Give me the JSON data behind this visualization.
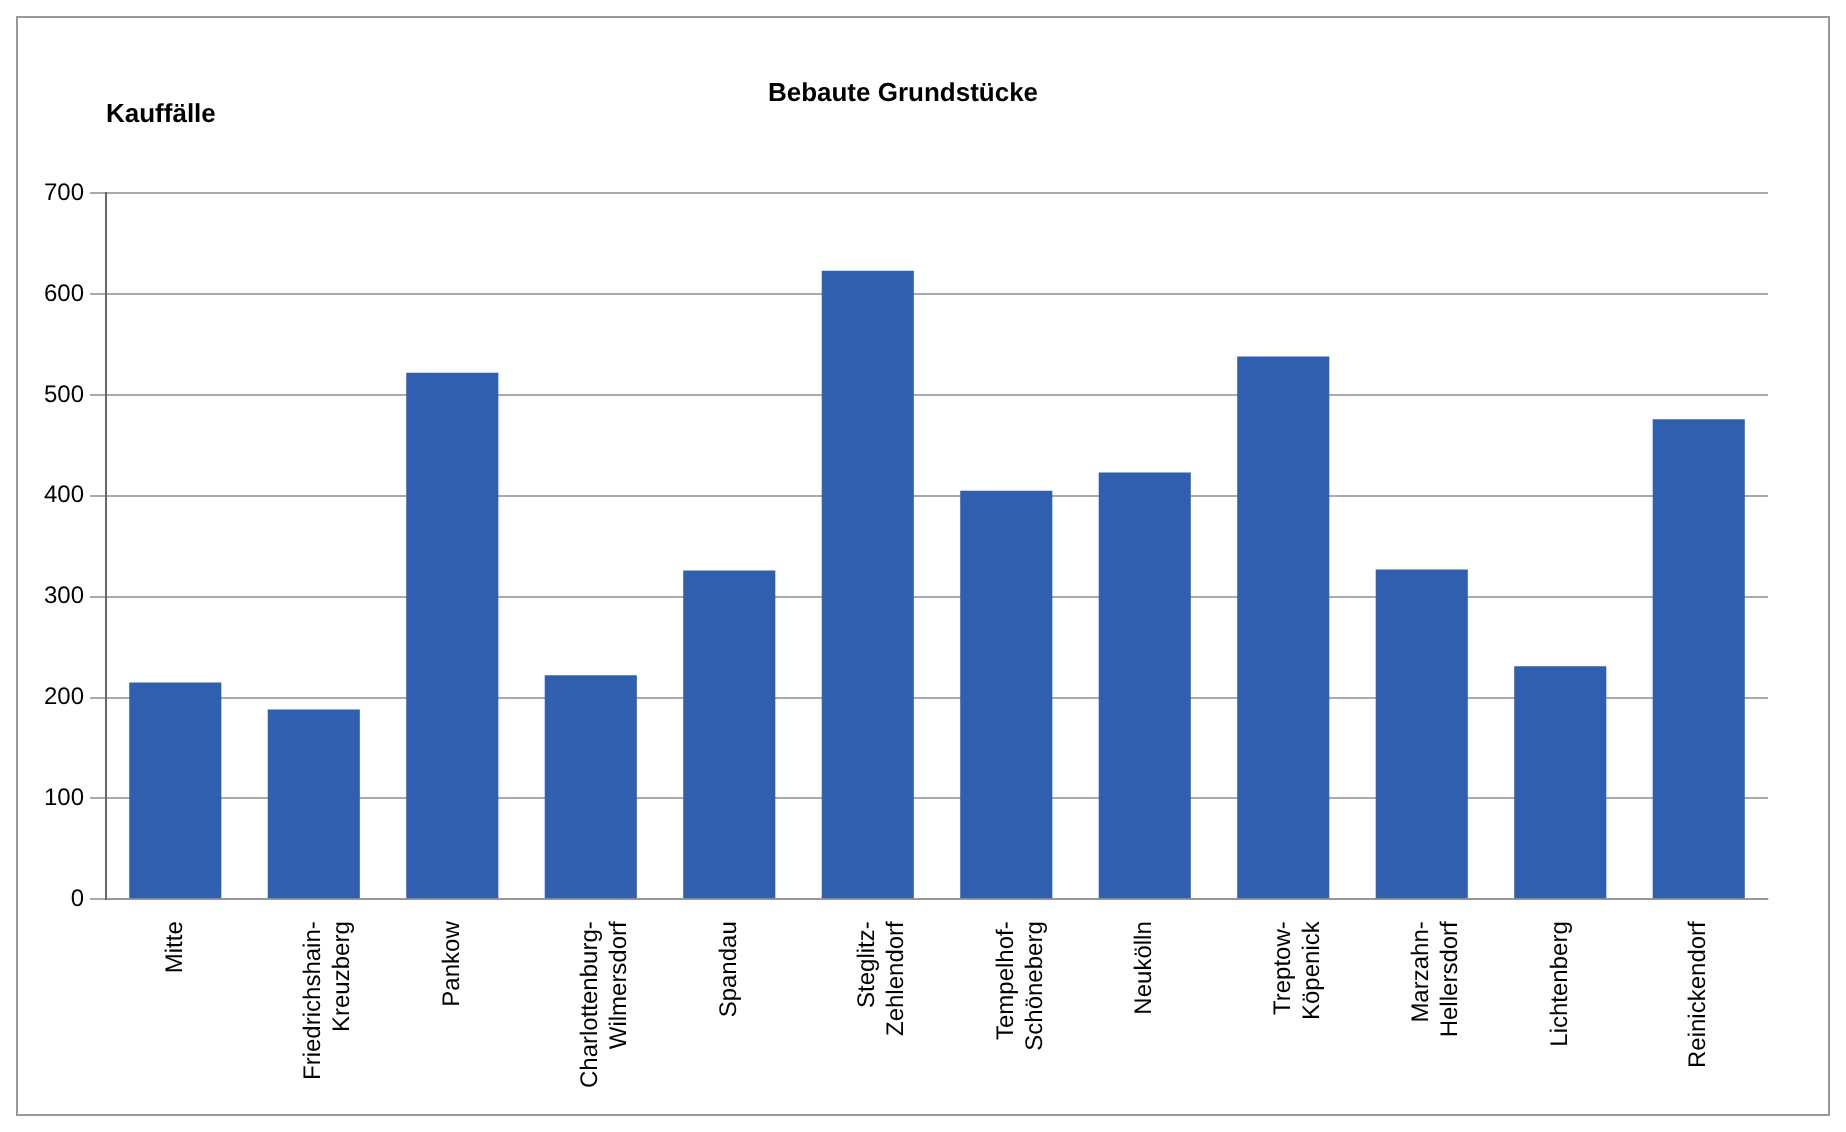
{
  "chart_data": {
    "type": "bar",
    "title": "Bebaute Grundstücke",
    "ylabel": "Kauffälle",
    "categories": [
      "Mitte",
      "Friedrichshain-\nKreuzberg",
      "Pankow",
      "Charlottenburg-\nWilmersdorf",
      "Spandau",
      "Steglitz-\nZehlendorf",
      "Tempelhof-\nSchöneberg",
      "Neukölln",
      "Treptow-\nKöpenick",
      "Marzahn-\nHellersdorf",
      "Lichtenberg",
      "Reinickendorf"
    ],
    "values": [
      215,
      188,
      522,
      222,
      326,
      623,
      405,
      423,
      538,
      327,
      231,
      476
    ],
    "color": "#2f5fae",
    "ylim": [
      0,
      700
    ],
    "yticks": [
      0,
      100,
      200,
      300,
      400,
      500,
      600,
      700
    ],
    "grid": "y"
  }
}
